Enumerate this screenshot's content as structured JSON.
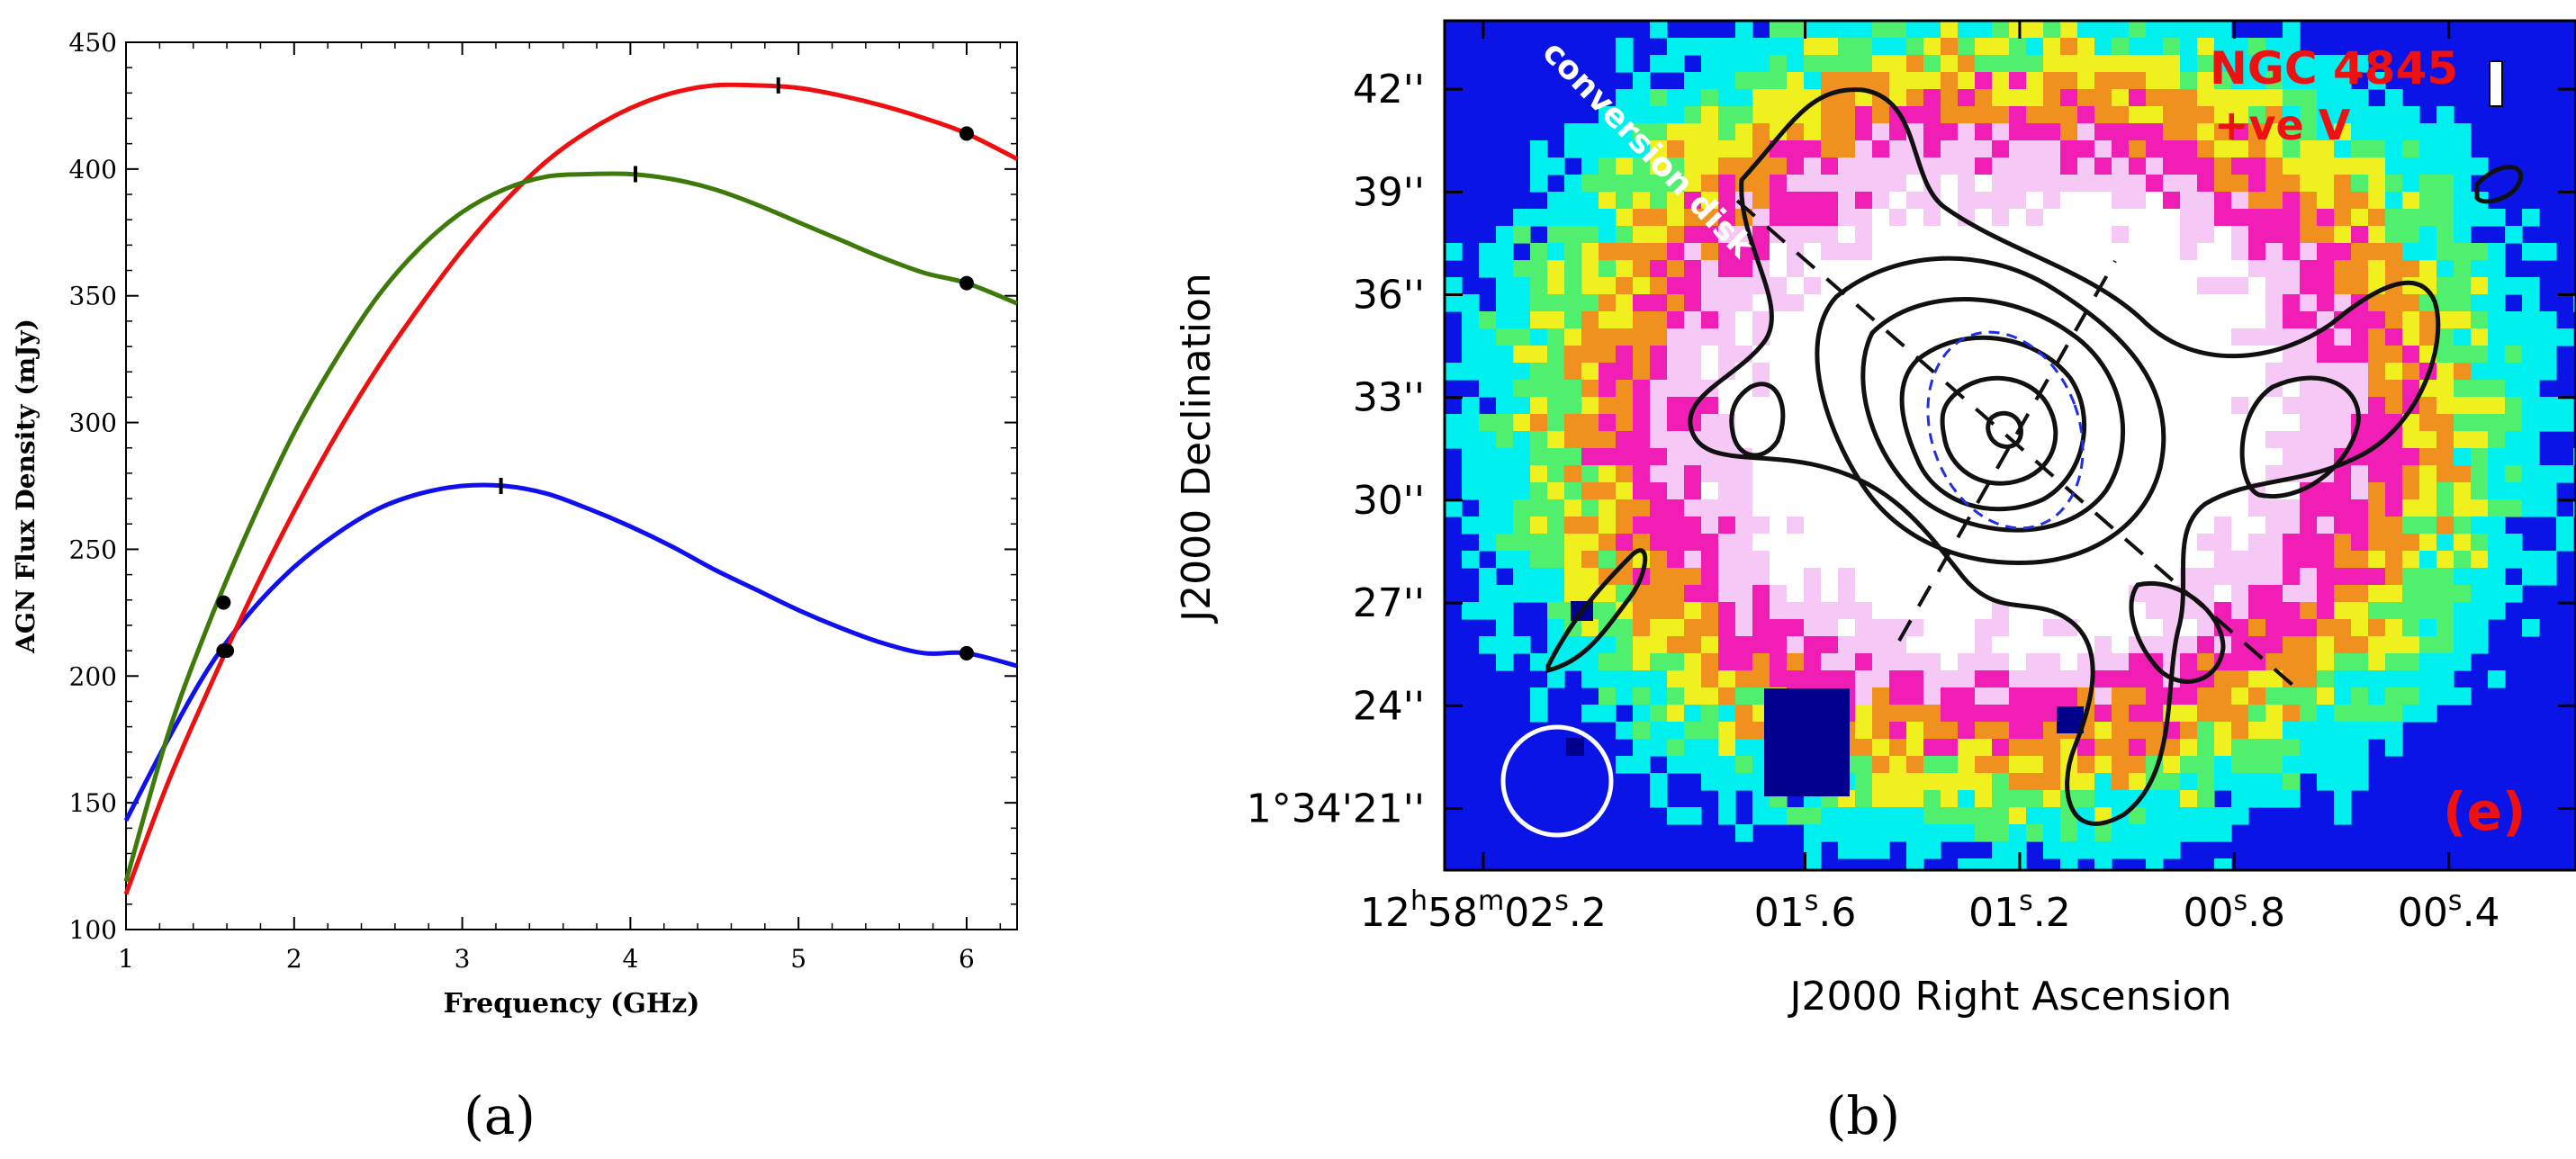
{
  "chart_data": [
    {
      "panel": "(a)",
      "type": "line",
      "title": "",
      "xlabel": "Frequency (GHz)",
      "ylabel": "AGN Flux Density (mJy)",
      "xlim": [
        1,
        6.3
      ],
      "ylim": [
        100,
        450
      ],
      "x_ticks": [
        1,
        2,
        3,
        4,
        5,
        6
      ],
      "y_ticks": [
        100,
        150,
        200,
        250,
        300,
        350,
        400,
        450
      ],
      "series": [
        {
          "name": "blue",
          "color": "#1010ee",
          "peak": {
            "x": 3.23,
            "y": 275
          },
          "x": [
            1.0,
            1.25,
            1.5,
            1.75,
            2.0,
            2.25,
            2.5,
            2.75,
            3.0,
            3.25,
            3.5,
            3.75,
            4.0,
            4.25,
            4.5,
            4.75,
            5.0,
            5.25,
            5.5,
            5.75,
            6.0,
            6.3
          ],
          "values": [
            143,
            175,
            204,
            226,
            243,
            256,
            266,
            272,
            275,
            275,
            272,
            266,
            259,
            251,
            242,
            234,
            226,
            219,
            213,
            209,
            209,
            204
          ],
          "points": [
            {
              "x": 1.6,
              "y": 210
            },
            {
              "x": 6.0,
              "y": 209
            }
          ]
        },
        {
          "name": "red",
          "color": "#ee1010",
          "peak": {
            "x": 4.88,
            "y": 433
          },
          "x": [
            1.0,
            1.25,
            1.5,
            1.75,
            2.0,
            2.25,
            2.5,
            2.75,
            3.0,
            3.25,
            3.5,
            3.75,
            4.0,
            4.25,
            4.5,
            4.75,
            5.0,
            5.25,
            5.5,
            5.75,
            6.0,
            6.3
          ],
          "values": [
            114,
            158,
            196,
            232,
            265,
            295,
            322,
            346,
            368,
            387,
            403,
            415,
            424,
            430,
            433,
            433,
            432,
            429,
            425,
            420,
            414,
            404
          ],
          "points": [
            {
              "x": 1.58,
              "y": 210
            },
            {
              "x": 6.0,
              "y": 414
            }
          ]
        },
        {
          "name": "green",
          "color": "#3d7a0a",
          "peak": {
            "x": 4.03,
            "y": 398
          },
          "x": [
            1.0,
            1.25,
            1.5,
            1.75,
            2.0,
            2.25,
            2.5,
            2.75,
            3.0,
            3.25,
            3.5,
            3.75,
            4.0,
            4.25,
            4.5,
            4.75,
            5.0,
            5.25,
            5.5,
            5.75,
            6.0,
            6.3
          ],
          "values": [
            119,
            177,
            222,
            261,
            296,
            325,
            350,
            369,
            383,
            392,
            397,
            398,
            398,
            396,
            392,
            386,
            379,
            372,
            365,
            359,
            355,
            347
          ],
          "points": [
            {
              "x": 1.58,
              "y": 229
            },
            {
              "x": 6.0,
              "y": 355
            }
          ]
        }
      ]
    },
    {
      "panel": "(b)",
      "type": "heatmap",
      "title": "NGC 4845",
      "subtitle": "+ve V",
      "panel_label": "(e)",
      "annotation": "conversion disk",
      "xlabel": "J2000 Right Ascension",
      "ylabel": "J2000 Declination",
      "x_ticks": [
        {
          "value": 2.2,
          "base": "12",
          "sup1": "h",
          "mid": "58",
          "sup2": "m",
          "tail": "02",
          "sup3": "s",
          "frac": ".2"
        },
        {
          "value": 1.6,
          "base": "",
          "sup1": "",
          "mid": "",
          "sup2": "",
          "tail": "01",
          "sup3": "s",
          "frac": ".6"
        },
        {
          "value": 1.2,
          "base": "",
          "sup1": "",
          "mid": "",
          "sup2": "",
          "tail": "01",
          "sup3": "s",
          "frac": ".2"
        },
        {
          "value": 0.8,
          "base": "",
          "sup1": "",
          "mid": "",
          "sup2": "",
          "tail": "00",
          "sup3": "s",
          "frac": ".8"
        },
        {
          "value": 0.4,
          "base": "",
          "sup1": "",
          "mid": "",
          "sup2": "",
          "tail": "00",
          "sup3": "s",
          "frac": ".4"
        }
      ],
      "y_ticks": [
        {
          "value": 21,
          "label": "1°34'21''"
        },
        {
          "value": 24,
          "label": "24''"
        },
        {
          "value": 27,
          "label": "27''"
        },
        {
          "value": 30,
          "label": "30''"
        },
        {
          "value": 33,
          "label": "33''"
        },
        {
          "value": 36,
          "label": "36''"
        },
        {
          "value": 39,
          "label": "39''"
        },
        {
          "value": 42,
          "label": "42''"
        }
      ],
      "colorscale": [
        "#00008c",
        "#0a14e6",
        "#1ea0f0",
        "#00f0f0",
        "#50f06e",
        "#f0f01e",
        "#f0901e",
        "#f01e1e",
        "#f01eb4",
        "#f5c8f5",
        "#ffffff"
      ],
      "contour_color": "#111111",
      "title_color": "#ee1111",
      "annotation_color": "#ffffff"
    }
  ],
  "captions": {
    "a": "(a)",
    "b": "(b)"
  }
}
